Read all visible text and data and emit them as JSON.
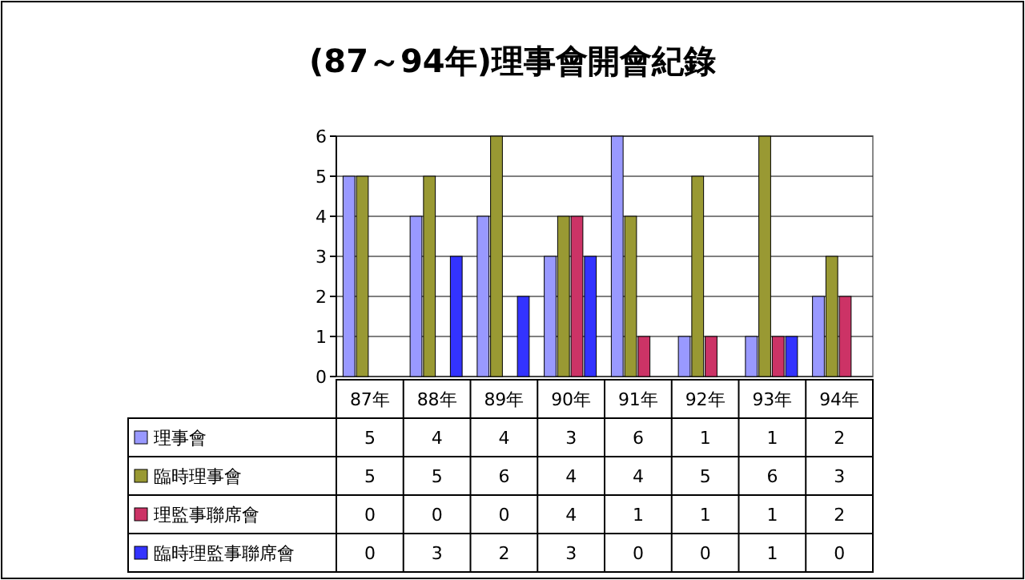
{
  "chart_data": {
    "type": "bar",
    "title": "(87～94年)理事會開會紀錄",
    "categories": [
      "87年",
      "88年",
      "89年",
      "90年",
      "91年",
      "92年",
      "93年",
      "94年"
    ],
    "series": [
      {
        "name": "理事會",
        "color": "#9999ff",
        "values": [
          5,
          4,
          4,
          3,
          6,
          1,
          1,
          2
        ]
      },
      {
        "name": "臨時理事會",
        "color": "#999933",
        "values": [
          5,
          5,
          6,
          4,
          4,
          5,
          6,
          3
        ]
      },
      {
        "name": "理監事聯席會",
        "color": "#cc3366",
        "values": [
          0,
          0,
          0,
          4,
          1,
          1,
          1,
          2
        ]
      },
      {
        "name": "臨時理監事聯席會",
        "color": "#3333ff",
        "values": [
          0,
          3,
          2,
          3,
          0,
          0,
          1,
          0
        ]
      }
    ],
    "ylim": [
      0,
      6
    ],
    "yticks": [
      0,
      1,
      2,
      3,
      4,
      5,
      6
    ],
    "grid": "y",
    "legend": "bottom",
    "data_labels": true
  }
}
